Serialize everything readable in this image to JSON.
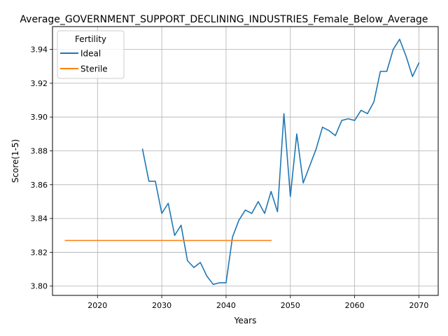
{
  "chart_data": {
    "type": "line",
    "title": "Average_GOVERNMENT_SUPPORT_DECLINING_INDUSTRIES_Female_Below_Average",
    "xlabel": "Years",
    "ylabel": "Score(1-5)",
    "xlim": [
      2013,
      2073
    ],
    "ylim": [
      3.7945,
      3.9535
    ],
    "xticks": [
      2020,
      2030,
      2040,
      2050,
      2060,
      2070
    ],
    "yticks": [
      3.8,
      3.82,
      3.84,
      3.86,
      3.88,
      3.9,
      3.92,
      3.94
    ],
    "ytick_labels": [
      "3.80",
      "3.82",
      "3.84",
      "3.86",
      "3.88",
      "3.90",
      "3.92",
      "3.94"
    ],
    "grid": true,
    "legend": {
      "title": "Fertility",
      "placement": "top-left"
    },
    "series": [
      {
        "name": "Ideal",
        "color": "#1f77b4",
        "x": [
          2027,
          2028,
          2029,
          2030,
          2031,
          2032,
          2033,
          2034,
          2035,
          2036,
          2037,
          2038,
          2039,
          2040,
          2041,
          2042,
          2043,
          2044,
          2045,
          2046,
          2047,
          2048,
          2049,
          2050,
          2051,
          2052,
          2053,
          2054,
          2055,
          2056,
          2057,
          2058,
          2059,
          2060,
          2061,
          2062,
          2063,
          2064,
          2065,
          2066,
          2067,
          2068,
          2069,
          2070
        ],
        "y": [
          3.881,
          3.862,
          3.862,
          3.843,
          3.849,
          3.83,
          3.836,
          3.815,
          3.811,
          3.814,
          3.806,
          3.801,
          3.802,
          3.802,
          3.829,
          3.839,
          3.845,
          3.843,
          3.85,
          3.843,
          3.856,
          3.844,
          3.902,
          3.853,
          3.89,
          3.861,
          3.871,
          3.881,
          3.894,
          3.892,
          3.889,
          3.898,
          3.899,
          3.898,
          3.904,
          3.902,
          3.909,
          3.927,
          3.927,
          3.94,
          3.946,
          3.936,
          3.924,
          3.932
        ]
      },
      {
        "name": "Sterile",
        "color": "#ff7f0e",
        "x": [
          2015,
          2047
        ],
        "y": [
          3.827,
          3.827
        ]
      }
    ]
  }
}
